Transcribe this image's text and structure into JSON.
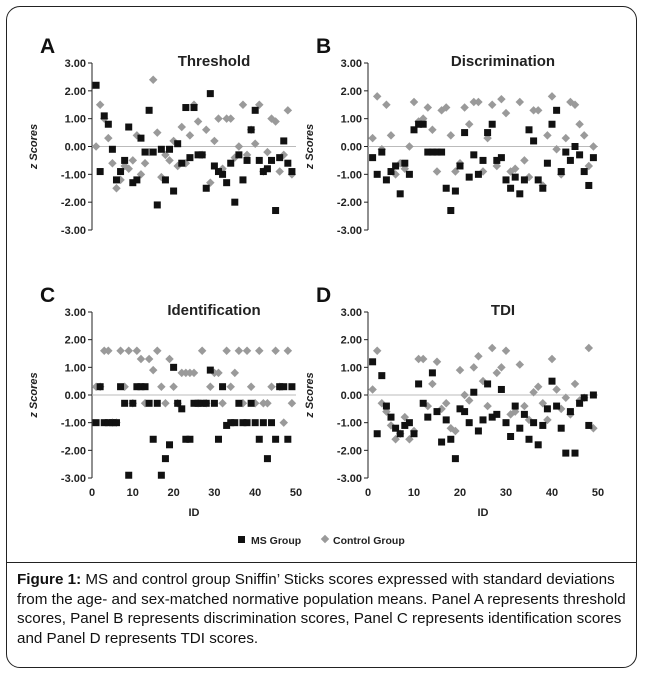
{
  "figure": {
    "caption_lead": "Figure 1:",
    "caption_body": " MS and control group Sniffin’ Sticks scores expressed with standard deviations from the age- and sex-matched normative population means. Panel A represents threshold scores, Panel B represents discrimination scores, Panel C represents identification scores and Panel D represents TDI scores.",
    "colors": {
      "ms": "#111111",
      "control": "#9a9a9a",
      "axis": "#222222"
    }
  },
  "chart_data": [
    {
      "type": "scatter",
      "panel": "A",
      "title": "Threshold",
      "ylabel": "z Scores",
      "xlabel": "",
      "xlim": [
        0,
        50
      ],
      "ylim": [
        -3,
        3
      ],
      "yticks": [
        "3.00",
        "2.00",
        "1.00",
        "0.00",
        "-1.00",
        "-2.00",
        "-3.00"
      ],
      "series": [
        {
          "name": "MS Group",
          "marker": "square",
          "x": [
            1,
            2,
            3,
            4,
            5,
            6,
            7,
            8,
            9,
            10,
            11,
            12,
            13,
            14,
            15,
            16,
            17,
            18,
            19,
            20,
            21,
            22,
            23,
            24,
            25,
            26,
            27,
            28,
            29,
            30,
            31,
            32,
            33,
            34,
            35,
            36,
            37,
            38,
            39,
            40,
            41,
            42,
            43,
            44,
            45,
            46,
            47,
            48,
            49
          ],
          "y": [
            2.2,
            -0.9,
            1.1,
            0.8,
            -0.1,
            -1.2,
            -0.9,
            -0.5,
            0.7,
            -1.3,
            -1.2,
            0.3,
            -0.2,
            1.3,
            -0.2,
            -2.1,
            -0.1,
            -1.2,
            -0.1,
            -1.6,
            0.1,
            -0.6,
            1.4,
            -0.4,
            1.4,
            -0.3,
            -0.3,
            -1.5,
            1.9,
            -0.7,
            -0.9,
            -1.0,
            -1.3,
            -0.6,
            -2.0,
            -0.3,
            -1.2,
            -0.5,
            0.6,
            1.3,
            -0.5,
            -0.9,
            -0.8,
            -0.5,
            -2.3,
            -0.4,
            0.2,
            -0.6,
            -0.9
          ]
        },
        {
          "name": "Control Group",
          "marker": "diamond",
          "x": [
            1,
            2,
            3,
            4,
            5,
            6,
            7,
            8,
            9,
            10,
            11,
            12,
            13,
            14,
            15,
            16,
            17,
            18,
            19,
            20,
            21,
            22,
            23,
            24,
            25,
            26,
            27,
            28,
            29,
            30,
            31,
            32,
            33,
            34,
            35,
            36,
            37,
            38,
            39,
            40,
            41,
            42,
            43,
            44,
            45,
            46,
            47,
            48,
            49
          ],
          "y": [
            0.0,
            1.5,
            1.0,
            0.3,
            -0.6,
            -1.5,
            -1.2,
            -0.7,
            -0.8,
            -0.5,
            0.4,
            -1.0,
            -0.6,
            -0.2,
            2.4,
            0.5,
            -1.1,
            -0.3,
            -0.5,
            0.2,
            -0.7,
            0.7,
            -0.6,
            0.4,
            1.5,
            0.9,
            -0.3,
            0.6,
            -1.3,
            0.2,
            1.0,
            -0.8,
            1.0,
            1.0,
            -0.4,
            0.0,
            1.5,
            -0.3,
            0.6,
            0.1,
            1.5,
            -0.9,
            -0.2,
            1.0,
            0.9,
            -0.9,
            -0.3,
            1.3,
            -1.0
          ]
        }
      ]
    },
    {
      "type": "scatter",
      "panel": "B",
      "title": "Discrimination",
      "ylabel": "z Scores",
      "xlabel": "",
      "xlim": [
        0,
        50
      ],
      "ylim": [
        -3,
        3
      ],
      "yticks": [
        "3.00",
        "2.00",
        "1.00",
        "0.00",
        "-1.00",
        "-2.00",
        "-3.00"
      ],
      "series": [
        {
          "name": "MS Group",
          "marker": "square",
          "x": [
            1,
            2,
            3,
            4,
            5,
            6,
            7,
            8,
            9,
            10,
            11,
            12,
            13,
            14,
            15,
            16,
            17,
            18,
            19,
            20,
            21,
            22,
            23,
            24,
            25,
            26,
            27,
            28,
            29,
            30,
            31,
            32,
            33,
            34,
            35,
            36,
            37,
            38,
            39,
            40,
            41,
            42,
            43,
            44,
            45,
            46,
            47,
            48,
            49
          ],
          "y": [
            -0.4,
            -1.0,
            -0.2,
            -1.2,
            -0.9,
            -0.7,
            -1.7,
            -0.6,
            -1.0,
            0.6,
            0.8,
            0.8,
            -0.2,
            -0.2,
            -0.2,
            -0.2,
            -1.5,
            -2.3,
            -1.6,
            -0.7,
            0.5,
            -1.1,
            -0.3,
            -1.0,
            -0.5,
            0.5,
            0.8,
            -0.5,
            -0.4,
            -1.2,
            -1.5,
            -1.1,
            -1.7,
            -1.2,
            0.6,
            0.2,
            -1.2,
            -1.5,
            -0.6,
            0.8,
            1.3,
            -0.9,
            -0.2,
            -0.5,
            0.0,
            -0.3,
            -0.9,
            -1.4,
            -0.4
          ],
          "note": ""
        },
        {
          "name": "Control Group",
          "marker": "diamond",
          "x": [
            1,
            2,
            3,
            4,
            5,
            6,
            7,
            8,
            9,
            10,
            11,
            12,
            13,
            14,
            15,
            16,
            17,
            18,
            19,
            20,
            21,
            22,
            23,
            24,
            25,
            26,
            27,
            28,
            29,
            30,
            31,
            32,
            33,
            34,
            35,
            36,
            37,
            38,
            39,
            40,
            41,
            42,
            43,
            44,
            45,
            46,
            47,
            48,
            49
          ],
          "y": [
            0.3,
            1.8,
            -0.1,
            1.5,
            0.4,
            -1.0,
            -0.6,
            -0.8,
            0.0,
            1.6,
            0.9,
            1.0,
            1.4,
            0.6,
            -0.9,
            1.3,
            1.4,
            0.4,
            -0.9,
            -0.6,
            1.4,
            0.8,
            1.6,
            1.6,
            -0.9,
            0.3,
            1.5,
            -0.7,
            1.7,
            1.2,
            -0.9,
            -0.8,
            1.6,
            -0.5,
            -1.1,
            1.3,
            1.3,
            -1.4,
            0.4,
            1.8,
            -0.1,
            -1.0,
            0.3,
            1.6,
            1.5,
            0.8,
            0.4,
            -0.7,
            0.0
          ]
        }
      ]
    },
    {
      "type": "scatter",
      "panel": "C",
      "title": "Identification",
      "ylabel": "z Scores",
      "xlabel": "",
      "xlim": [
        0,
        50
      ],
      "ylim": [
        -3,
        3
      ],
      "yticks": [
        "3.00",
        "2.00",
        "1.00",
        "0.00",
        "-1.00",
        "-2.00",
        "-3.00"
      ],
      "series": [
        {
          "name": "MS Group",
          "marker": "square",
          "x": [
            1,
            2,
            3,
            4,
            5,
            6,
            7,
            8,
            9,
            10,
            11,
            12,
            13,
            14,
            15,
            16,
            17,
            18,
            19,
            20,
            21,
            22,
            23,
            24,
            25,
            26,
            27,
            28,
            29,
            30,
            31,
            32,
            33,
            34,
            35,
            36,
            37,
            38,
            39,
            40,
            41,
            42,
            43,
            44,
            45,
            46,
            47,
            48,
            49
          ],
          "y": [
            -1.0,
            0.3,
            -1.0,
            -1.0,
            -1.0,
            -1.0,
            0.3,
            -0.3,
            -2.9,
            -0.3,
            0.3,
            0.3,
            0.3,
            -0.3,
            -1.6,
            -0.3,
            -2.9,
            -2.3,
            -1.8,
            1.0,
            -0.3,
            -0.5,
            -1.6,
            -1.6,
            -0.3,
            -0.3,
            -0.3,
            -0.3,
            0.9,
            -0.3,
            -1.6,
            0.3,
            -1.1,
            -1.0,
            -1.0,
            -0.3,
            -1.0,
            -1.0,
            -0.3,
            -1.0,
            -1.6,
            -1.0,
            -2.3,
            -1.0,
            -1.6,
            0.3,
            0.3,
            -1.6,
            0.3
          ],
          "note": ""
        },
        {
          "name": "Control Group",
          "marker": "diamond",
          "x": [
            1,
            2,
            3,
            4,
            5,
            6,
            7,
            8,
            9,
            10,
            11,
            12,
            13,
            14,
            15,
            16,
            17,
            18,
            19,
            20,
            21,
            22,
            23,
            24,
            25,
            26,
            27,
            28,
            29,
            30,
            31,
            32,
            33,
            34,
            35,
            36,
            37,
            38,
            39,
            40,
            41,
            42,
            43,
            44,
            45,
            46,
            47,
            48,
            49
          ],
          "y": [
            0.3,
            0.3,
            1.6,
            1.6,
            -1.0,
            -1.0,
            1.6,
            0.3,
            1.6,
            -0.3,
            1.6,
            1.3,
            -0.3,
            1.3,
            0.9,
            1.6,
            0.3,
            -0.3,
            1.3,
            0.3,
            -0.3,
            0.8,
            0.8,
            0.8,
            0.8,
            -0.3,
            1.6,
            -0.3,
            0.3,
            0.8,
            0.8,
            -0.3,
            1.6,
            0.3,
            0.8,
            1.6,
            -0.3,
            1.6,
            0.3,
            -0.3,
            1.6,
            -0.3,
            -0.3,
            0.3,
            1.6,
            0.3,
            -1.0,
            1.6,
            -0.3
          ]
        }
      ]
    },
    {
      "type": "scatter",
      "panel": "D",
      "title": "TDI",
      "ylabel": "z Scores",
      "xlabel": "ID",
      "xlim": [
        0,
        50
      ],
      "ylim": [
        -3,
        3
      ],
      "yticks": [
        "3.00",
        "2.00",
        "1.00",
        "0.00",
        "-1.00",
        "-2.00",
        "-3.00"
      ],
      "xticks": [
        "0",
        "10",
        "20",
        "30",
        "40",
        "50"
      ],
      "series": [
        {
          "name": "MS Group",
          "marker": "square",
          "x": [
            1,
            2,
            3,
            4,
            5,
            6,
            7,
            8,
            9,
            10,
            11,
            12,
            13,
            14,
            15,
            16,
            17,
            18,
            19,
            20,
            21,
            22,
            23,
            24,
            25,
            26,
            27,
            28,
            29,
            30,
            31,
            32,
            33,
            34,
            35,
            36,
            37,
            38,
            39,
            40,
            41,
            42,
            43,
            44,
            45,
            46,
            47,
            48,
            49
          ],
          "y": [
            1.2,
            -1.4,
            0.7,
            -0.4,
            -0.8,
            -1.2,
            -1.4,
            -1.1,
            -1.0,
            -1.4,
            0.4,
            -0.3,
            -0.8,
            0.8,
            -0.6,
            -1.7,
            -0.9,
            -1.6,
            -2.3,
            -0.5,
            -0.6,
            -1.0,
            0.1,
            -1.3,
            -0.9,
            0.4,
            -0.8,
            -0.7,
            0.2,
            -1.0,
            -1.5,
            -0.4,
            -1.2,
            -0.7,
            -1.6,
            -1.0,
            -1.8,
            -1.1,
            -0.5,
            0.5,
            -0.4,
            -1.2,
            -2.1,
            -0.6,
            -2.1,
            -0.3,
            -0.1,
            -1.1,
            0.0
          ]
        },
        {
          "name": "Control Group",
          "marker": "diamond",
          "x": [
            1,
            2,
            3,
            4,
            5,
            6,
            7,
            8,
            9,
            10,
            11,
            12,
            13,
            14,
            15,
            16,
            17,
            18,
            19,
            20,
            21,
            22,
            23,
            24,
            25,
            26,
            27,
            28,
            29,
            30,
            31,
            32,
            33,
            34,
            35,
            36,
            37,
            38,
            39,
            40,
            41,
            42,
            43,
            44,
            45,
            46,
            47,
            48,
            49
          ],
          "y": [
            0.2,
            1.6,
            -0.3,
            -0.6,
            -1.1,
            -1.6,
            -1.4,
            -0.8,
            -1.6,
            -1.3,
            1.3,
            1.3,
            -0.4,
            0.4,
            1.2,
            -0.5,
            -0.3,
            -1.2,
            -1.3,
            0.9,
            0.0,
            -0.2,
            1.0,
            1.4,
            0.5,
            -0.4,
            1.7,
            0.8,
            1.0,
            1.6,
            -0.7,
            -0.6,
            1.1,
            -0.4,
            -0.9,
            0.1,
            0.3,
            -0.3,
            -0.9,
            1.3,
            0.2,
            -0.5,
            -0.1,
            -0.7,
            0.4,
            -0.2,
            -0.1,
            1.7,
            -1.2
          ]
        }
      ]
    }
  ],
  "legend": [
    {
      "label": "MS Group",
      "marker": "square"
    },
    {
      "label": "Control Group",
      "marker": "diamond"
    }
  ]
}
